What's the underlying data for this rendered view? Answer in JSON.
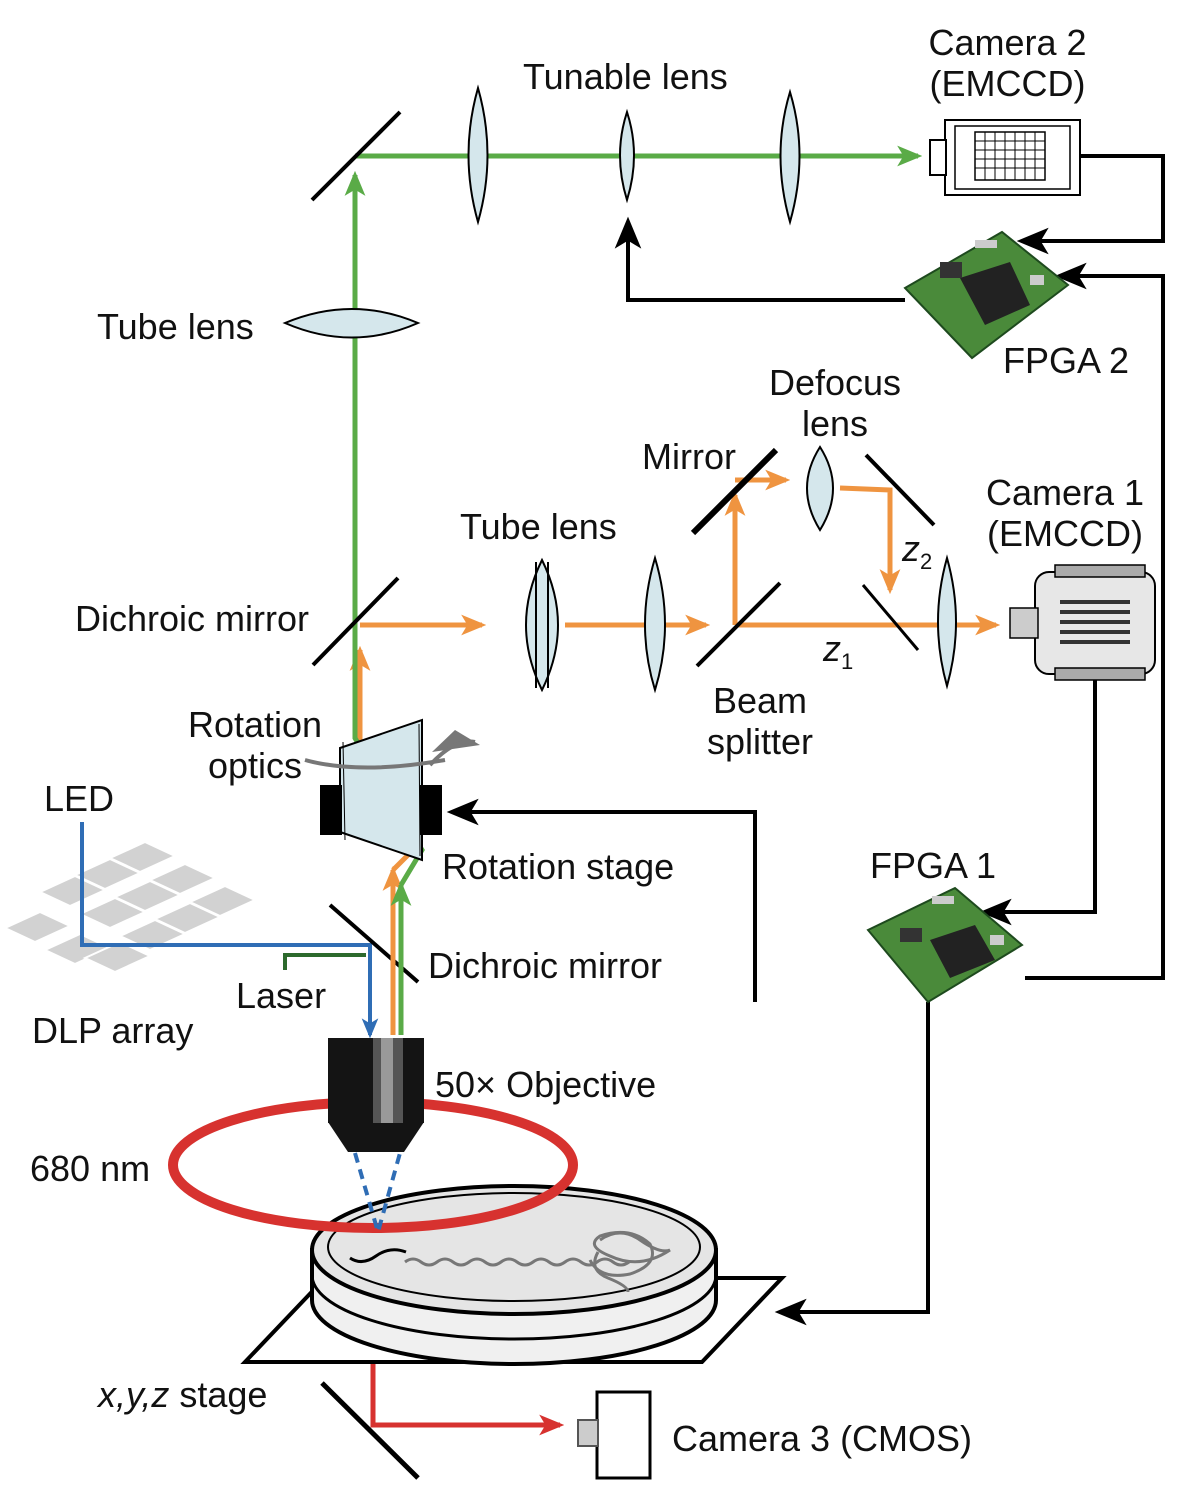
{
  "labels": {
    "tunable_lens": "Tunable lens",
    "camera2": [
      "Camera 2",
      "(EMCCD)"
    ],
    "tube_lens_top": "Tube lens",
    "fpga2": "FPGA 2",
    "defocus_lens": [
      "Defocus",
      "lens"
    ],
    "mirror": "Mirror",
    "camera1": [
      "Camera 1",
      "(EMCCD)"
    ],
    "tube_lens_mid": "Tube lens",
    "dichroic_mirror_top": "Dichroic mirror",
    "z2_main": "z",
    "z2_sub": "2",
    "z1_main": "z",
    "z1_sub": "1",
    "beam_splitter": [
      "Beam",
      "splitter"
    ],
    "rotation_optics": [
      "Rotation",
      "optics"
    ],
    "rotation_stage": "Rotation stage",
    "led": "LED",
    "fpga1": "FPGA 1",
    "dichroic_mirror_bottom": "Dichroic mirror",
    "laser": "Laser",
    "dlp_array": "DLP array",
    "objective": "50× Objective",
    "wavelength": "680 nm",
    "xyz_stage_axes": "x,y,z",
    "xyz_stage_word": " stage",
    "camera3": "Camera 3 (CMOS)"
  },
  "colors": {
    "green_beam": "#5aab47",
    "orange_beam": "#ef9440",
    "blue_beam": "#2f6db5",
    "dark_green": "#2d6a2d",
    "red_beam": "#d7322f",
    "lens_fill": "#d5e7ec",
    "signal": "#000000"
  }
}
